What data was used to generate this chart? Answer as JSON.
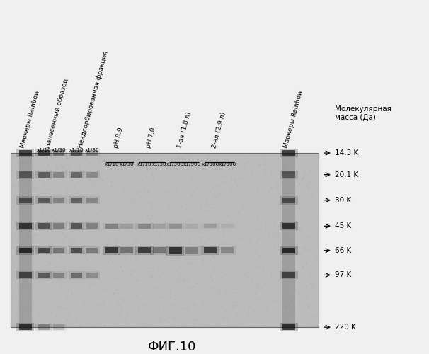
{
  "figure_title": "ФИГ.10",
  "mw_labels": [
    "220 K",
    "97 K",
    "66 K",
    "45 K",
    "30 K",
    "20.1 K",
    "14.3 K"
  ],
  "mw_vals": [
    220,
    97,
    66,
    45,
    30,
    20.1,
    14.3
  ],
  "mw_header": "Молекулярная\nмасса (Да)",
  "noise_seed": 42,
  "col_labels": [
    "Маркеры Rainbow",
    "Нанесенный образец",
    "Неадсорбированная фракция",
    "pH 8.9",
    "pH 7.0",
    "1-ая (1.8 л)",
    "2-ая (2.9 л)",
    "Маркеры Rainbow"
  ]
}
